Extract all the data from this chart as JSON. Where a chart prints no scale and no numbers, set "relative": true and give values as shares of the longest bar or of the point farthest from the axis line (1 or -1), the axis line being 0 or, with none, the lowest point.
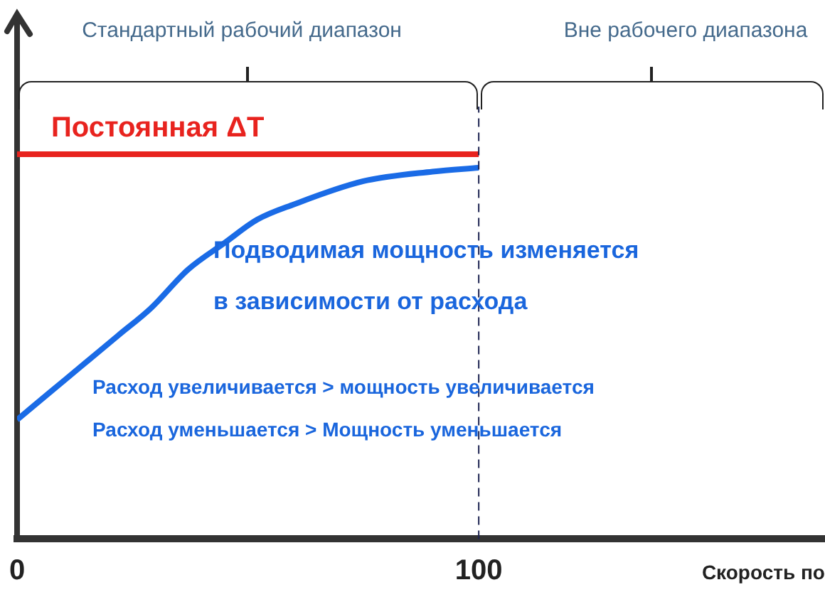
{
  "chart_data": {
    "type": "line",
    "relative": true,
    "xlabel": "Скорость по",
    "xlim": [
      0,
      175
    ],
    "xticks": [
      0,
      100
    ],
    "series": [
      {
        "name": "Постоянная ΔT",
        "color": "#e8231e",
        "x": [
          0,
          100
        ],
        "values": [
          1,
          1
        ]
      },
      {
        "color": "#1a6be6",
        "x": [
          0,
          7,
          14,
          22,
          29,
          37,
          45,
          52,
          60,
          75,
          90,
          100
        ],
        "values": [
          0.31,
          0.38,
          0.45,
          0.53,
          0.6,
          0.7,
          0.77,
          0.83,
          0.87,
          0.93,
          0.955,
          0.965
        ]
      }
    ],
    "ref_lines": [
      {
        "axis": "x",
        "value": 100,
        "color": "#1c2350",
        "line_style": "dashed"
      }
    ],
    "annotations": [
      "Стандартный рабочий диапазон",
      "Вне рабочего диапазона",
      "Подводимая мощность изменяется",
      "в зависимости от расхода",
      "Расход увеличивается > мощность увеличивается",
      "Расход уменьшается > Мощность уменьшается"
    ],
    "grid": false,
    "legend": false,
    "marker": "none",
    "line_style": "solid"
  }
}
